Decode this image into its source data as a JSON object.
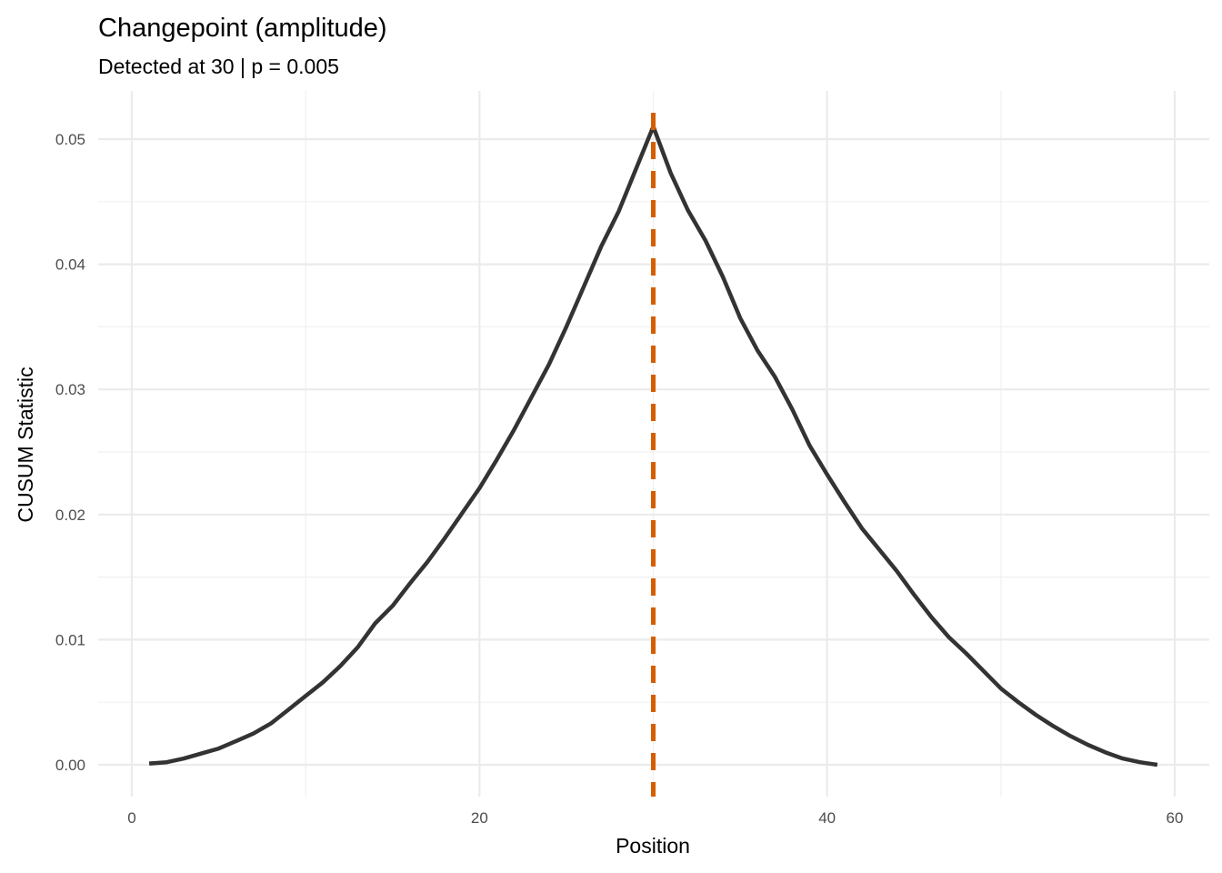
{
  "chart_data": {
    "type": "line",
    "title": "Changepoint (amplitude)",
    "subtitle": "Detected at 30 | p = 0.005",
    "xlabel": "Position",
    "ylabel": "CUSUM Statistic",
    "xlim": [
      -1.5,
      62
    ],
    "ylim": [
      -0.0025,
      0.0525
    ],
    "xticks": [
      0,
      20,
      40,
      60
    ],
    "xtick_labels": [
      "0",
      "20",
      "40",
      "60"
    ],
    "yticks": [
      0,
      0.01,
      0.02,
      0.03,
      0.04,
      0.05
    ],
    "ytick_labels": [
      "0.00",
      "0.01",
      "0.02",
      "0.03",
      "0.04",
      "0.05"
    ],
    "grid": true,
    "changepoint": {
      "x": 30,
      "color": "#D55E00",
      "style": "dashed"
    },
    "series": [
      {
        "name": "CUSUM",
        "color": "#333333",
        "x": [
          1,
          2,
          3,
          4,
          5,
          6,
          7,
          8,
          9,
          10,
          11,
          12,
          13,
          14,
          15,
          16,
          17,
          18,
          19,
          20,
          21,
          22,
          23,
          24,
          25,
          26,
          27,
          28,
          29,
          30,
          31,
          32,
          33,
          34,
          35,
          36,
          37,
          38,
          39,
          40,
          41,
          42,
          43,
          44,
          45,
          46,
          47,
          48,
          49,
          50,
          51,
          52,
          53,
          54,
          55,
          56,
          57,
          58,
          59
        ],
        "values": [
          0.0001,
          0.0002,
          0.0005,
          0.0009,
          0.0013,
          0.0019,
          0.0025,
          0.0033,
          0.0044,
          0.0055,
          0.0066,
          0.0079,
          0.0094,
          0.0113,
          0.0127,
          0.0145,
          0.0162,
          0.0181,
          0.0201,
          0.0221,
          0.0244,
          0.0268,
          0.0294,
          0.032,
          0.035,
          0.0382,
          0.0414,
          0.0442,
          0.0476,
          0.051,
          0.0473,
          0.0443,
          0.0419,
          0.039,
          0.0357,
          0.0331,
          0.031,
          0.0284,
          0.0255,
          0.0232,
          0.021,
          0.0189,
          0.0172,
          0.0155,
          0.0136,
          0.0118,
          0.0102,
          0.0089,
          0.0075,
          0.0061,
          0.005,
          0.004,
          0.0031,
          0.0023,
          0.0016,
          0.001,
          0.0005,
          0.0002,
          0.0
        ]
      }
    ]
  }
}
